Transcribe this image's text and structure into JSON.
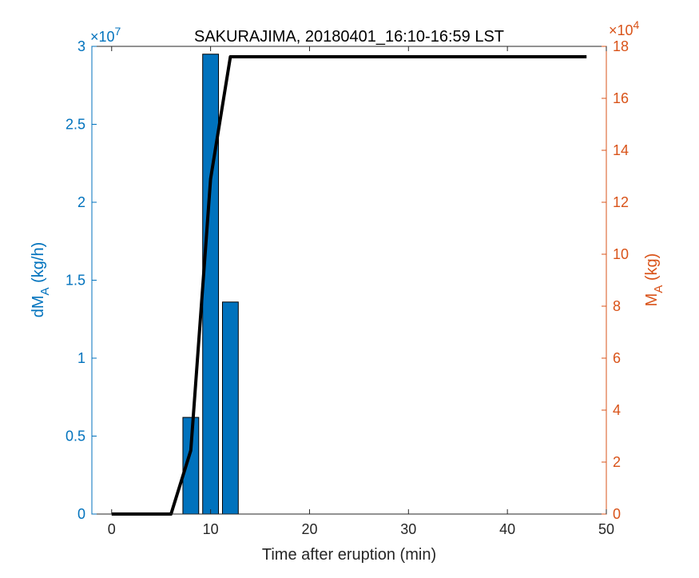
{
  "chart_data": {
    "type": "bar",
    "title": "SAKURAJIMA, 20180401_16:10-16:59 LST",
    "xlabel": "Time after eruption (min)",
    "xlim": [
      -2,
      50
    ],
    "xticks": [
      0,
      10,
      20,
      30,
      40,
      50
    ],
    "left_axis": {
      "label_main": "dM",
      "label_sub": "A",
      "label_unit": " (kg/h)",
      "multiplier_base": "×10",
      "multiplier_exp": "7",
      "ylim": [
        0,
        3
      ],
      "ticks": [
        0,
        0.5,
        1,
        1.5,
        2,
        2.5,
        3
      ],
      "color": "#0072BD"
    },
    "right_axis": {
      "label_main": "M",
      "label_sub": "A",
      "label_unit": " (kg)",
      "multiplier_base": "×10",
      "multiplier_exp": "4",
      "ylim": [
        0,
        18
      ],
      "ticks": [
        0,
        2,
        4,
        6,
        8,
        10,
        12,
        14,
        16,
        18
      ],
      "color": "#D95319"
    },
    "bars": {
      "x": [
        8,
        10,
        12
      ],
      "values": [
        0.62,
        2.95,
        1.36
      ],
      "width": 1.6,
      "color": "#0072BD"
    },
    "line": {
      "x": [
        0,
        6,
        8,
        10,
        12,
        48
      ],
      "values": [
        0,
        0,
        2.45,
        12.9,
        17.6,
        17.6
      ],
      "color": "#000000"
    }
  }
}
